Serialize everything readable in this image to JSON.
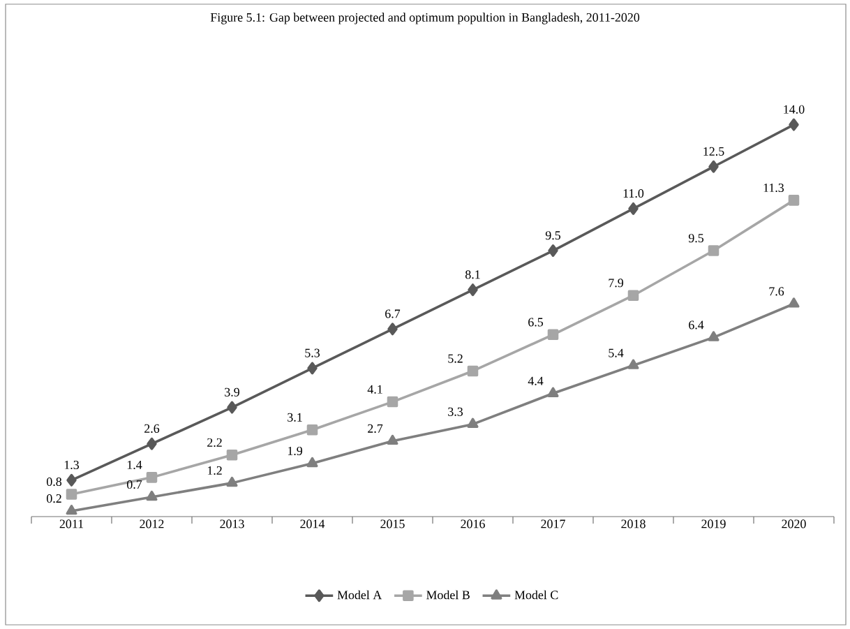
{
  "chart_data": {
    "type": "line",
    "title": "Figure 5.1: Gap between projected and optimum popultion in Bangladesh, 2011-2020",
    "categories": [
      "2011",
      "2012",
      "2013",
      "2014",
      "2015",
      "2016",
      "2017",
      "2018",
      "2019",
      "2020"
    ],
    "series": [
      {
        "name": "Model A",
        "color": "#595959",
        "marker": "diamond",
        "values": [
          1.3,
          2.6,
          3.9,
          5.3,
          6.7,
          8.1,
          9.5,
          11.0,
          12.5,
          14.0
        ],
        "value_labels": [
          "1.3",
          "2.6",
          "3.9",
          "5.3",
          "6.7",
          "8.1",
          "9.5",
          "11.0",
          "12.5",
          "14.0"
        ]
      },
      {
        "name": "Model B",
        "color": "#a6a6a6",
        "marker": "square",
        "values": [
          0.8,
          1.4,
          2.2,
          3.1,
          4.1,
          5.2,
          6.5,
          7.9,
          9.5,
          11.3
        ],
        "value_labels": [
          "0.8",
          "1.4",
          "2.2",
          "3.1",
          "4.1",
          "5.2",
          "6.5",
          "7.9",
          "9.5",
          "11.3"
        ]
      },
      {
        "name": "Model C",
        "color": "#7f7f7f",
        "marker": "triangle",
        "values": [
          0.2,
          0.7,
          1.2,
          1.9,
          2.7,
          3.3,
          4.4,
          5.4,
          6.4,
          7.6
        ],
        "value_labels": [
          "0.2",
          "0.7",
          "1.2",
          "1.9",
          "2.7",
          "3.3",
          "4.4",
          "5.4",
          "6.4",
          "7.6"
        ]
      }
    ],
    "legend": "bottom",
    "tick_labels": "x"
  }
}
